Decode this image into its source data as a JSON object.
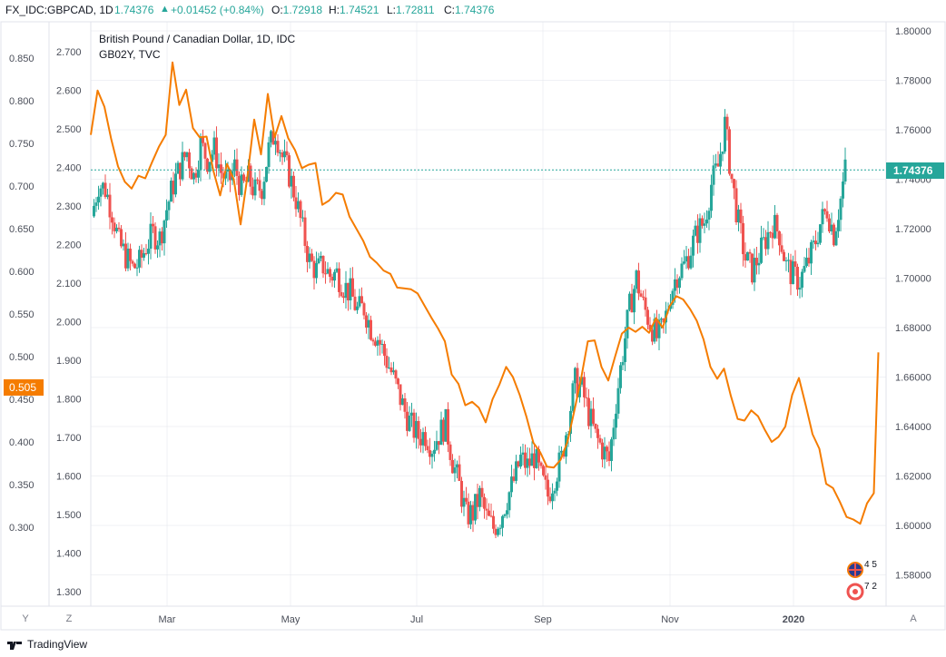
{
  "header": {
    "symbol": "FX_IDC:GBPCAD, 1D",
    "last": "1.74376",
    "up_arrow": "▲",
    "change": "+0.01452 (+0.84%)",
    "o_label": "O:",
    "o_value": "1.72918",
    "h_label": "H:",
    "h_value": "1.74521",
    "l_label": "L:",
    "l_value": "1.72811",
    "c_label": "C:",
    "c_value": "1.74376"
  },
  "legend": {
    "main": "British Pound / Canadian Dollar, 1D, IDC",
    "secondary": "GB02Y, TVC"
  },
  "axis_buttons": {
    "left_y": "Y",
    "left_z": "Z",
    "right_a": "A"
  },
  "footer": {
    "brand": "TradingView",
    "logo_icon": "tradingview-logo-icon"
  },
  "colors": {
    "up": "#26a69a",
    "down": "#ef5350",
    "overlay": "#f57c00",
    "price_line": "#26a69a",
    "grid": "#e0e3eb",
    "axis_text": "#4a4e59"
  },
  "chart_data": {
    "type": "candlestick",
    "series": [
      {
        "name": "FX_IDC:GBPCAD",
        "kind": "candlestick",
        "axis": "right"
      },
      {
        "name": "GB02Y",
        "kind": "line",
        "axis": "left-inner"
      }
    ],
    "x_labels": [
      "Mar",
      "May",
      "Jul",
      "Sep",
      "Nov",
      "2020"
    ],
    "right_axis": {
      "ticks": [
        "1.80000",
        "1.78000",
        "1.76000",
        "1.74000",
        "1.72000",
        "1.70000",
        "1.68000",
        "1.66000",
        "1.64000",
        "1.62000",
        "1.60000",
        "1.58000"
      ],
      "current_price": "1.74376",
      "ylim": [
        1.5712,
        1.8052
      ]
    },
    "left_inner_axis": {
      "ticks": [
        "2.700",
        "2.600",
        "2.500",
        "2.400",
        "2.300",
        "2.200",
        "2.100",
        "2.000",
        "1.900",
        "1.800",
        "1.700",
        "1.600",
        "1.500",
        "1.400",
        "1.300"
      ]
    },
    "left_outer_axis": {
      "ticks": [
        "0.850",
        "0.800",
        "0.750",
        "0.700",
        "0.650",
        "0.600",
        "0.550",
        "0.500",
        "0.450",
        "0.400",
        "0.350",
        "0.300"
      ],
      "current_value": "0.505",
      "ylim": [
        0.2704,
        0.8944
      ]
    },
    "badges": [
      {
        "icon": "uk-flag-icon",
        "text": "4 5"
      },
      {
        "icon": "canada-flag-icon",
        "text": "7 2"
      }
    ],
    "gbpcad_path": [
      [
        0,
        1.725
      ],
      [
        3,
        1.738
      ],
      [
        6,
        1.736
      ],
      [
        9,
        1.727
      ],
      [
        12,
        1.714
      ],
      [
        15,
        1.709
      ],
      [
        18,
        1.704
      ],
      [
        21,
        1.706
      ],
      [
        24,
        1.713
      ],
      [
        27,
        1.718
      ],
      [
        30,
        1.716
      ],
      [
        33,
        1.728
      ],
      [
        36,
        1.738
      ],
      [
        39,
        1.745
      ],
      [
        42,
        1.751
      ],
      [
        45,
        1.741
      ],
      [
        48,
        1.754
      ],
      [
        51,
        1.748
      ],
      [
        54,
        1.752
      ],
      [
        57,
        1.743
      ],
      [
        60,
        1.738
      ],
      [
        63,
        1.745
      ],
      [
        66,
        1.736
      ],
      [
        69,
        1.74
      ],
      [
        72,
        1.735
      ],
      [
        75,
        1.737
      ],
      [
        78,
        1.752
      ],
      [
        81,
        1.76
      ],
      [
        84,
        1.749
      ],
      [
        87,
        1.742
      ],
      [
        90,
        1.732
      ],
      [
        93,
        1.719
      ],
      [
        96,
        1.707
      ],
      [
        99,
        1.703
      ],
      [
        102,
        1.705
      ],
      [
        105,
        1.701
      ],
      [
        108,
        1.702
      ],
      [
        111,
        1.697
      ],
      [
        114,
        1.694
      ],
      [
        117,
        1.687
      ],
      [
        120,
        1.688
      ],
      [
        123,
        1.68
      ],
      [
        126,
        1.676
      ],
      [
        129,
        1.669
      ],
      [
        132,
        1.662
      ],
      [
        135,
        1.654
      ],
      [
        138,
        1.646
      ],
      [
        141,
        1.64
      ],
      [
        144,
        1.636
      ],
      [
        147,
        1.637
      ],
      [
        150,
        1.632
      ],
      [
        153,
        1.637
      ],
      [
        156,
        1.641
      ],
      [
        159,
        1.626
      ],
      [
        162,
        1.616
      ],
      [
        165,
        1.604
      ],
      [
        168,
        1.605
      ],
      [
        171,
        1.612
      ],
      [
        174,
        1.603
      ],
      [
        177,
        1.599
      ],
      [
        180,
        1.603
      ],
      [
        183,
        1.611
      ],
      [
        186,
        1.618
      ],
      [
        189,
        1.627
      ],
      [
        192,
        1.624
      ],
      [
        195,
        1.628
      ],
      [
        198,
        1.619
      ],
      [
        201,
        1.612
      ],
      [
        204,
        1.62
      ],
      [
        207,
        1.627
      ],
      [
        210,
        1.643
      ],
      [
        213,
        1.658
      ],
      [
        216,
        1.655
      ],
      [
        219,
        1.645
      ],
      [
        222,
        1.636
      ],
      [
        225,
        1.631
      ],
      [
        228,
        1.626
      ],
      [
        231,
        1.65
      ],
      [
        234,
        1.67
      ],
      [
        237,
        1.688
      ],
      [
        240,
        1.7
      ],
      [
        243,
        1.689
      ],
      [
        246,
        1.682
      ],
      [
        249,
        1.676
      ],
      [
        252,
        1.68
      ],
      [
        255,
        1.694
      ],
      [
        258,
        1.702
      ],
      [
        261,
        1.705
      ],
      [
        264,
        1.712
      ],
      [
        267,
        1.719
      ],
      [
        270,
        1.723
      ],
      [
        273,
        1.738
      ],
      [
        276,
        1.745
      ],
      [
        279,
        1.762
      ],
      [
        282,
        1.74
      ],
      [
        285,
        1.722
      ],
      [
        288,
        1.708
      ],
      [
        291,
        1.703
      ],
      [
        294,
        1.709
      ],
      [
        297,
        1.716
      ],
      [
        300,
        1.722
      ],
      [
        303,
        1.718
      ],
      [
        306,
        1.705
      ],
      [
        309,
        1.701
      ],
      [
        312,
        1.699
      ],
      [
        315,
        1.705
      ],
      [
        318,
        1.712
      ],
      [
        321,
        1.722
      ],
      [
        324,
        1.728
      ],
      [
        327,
        1.718
      ],
      [
        330,
        1.732
      ],
      [
        332,
        1.744
      ]
    ],
    "gb02y_line": [
      [
        0,
        0.76
      ],
      [
        3,
        0.812
      ],
      [
        6,
        0.793
      ],
      [
        9,
        0.755
      ],
      [
        12,
        0.723
      ],
      [
        15,
        0.705
      ],
      [
        18,
        0.697
      ],
      [
        21,
        0.712
      ],
      [
        24,
        0.709
      ],
      [
        27,
        0.728
      ],
      [
        30,
        0.746
      ],
      [
        33,
        0.76
      ],
      [
        36,
        0.845
      ],
      [
        39,
        0.795
      ],
      [
        42,
        0.813
      ],
      [
        45,
        0.768
      ],
      [
        48,
        0.757
      ],
      [
        51,
        0.758
      ],
      [
        54,
        0.718
      ],
      [
        57,
        0.689
      ],
      [
        60,
        0.726
      ],
      [
        63,
        0.708
      ],
      [
        66,
        0.655
      ],
      [
        69,
        0.711
      ],
      [
        72,
        0.778
      ],
      [
        75,
        0.737
      ],
      [
        78,
        0.808
      ],
      [
        81,
        0.757
      ],
      [
        84,
        0.782
      ],
      [
        87,
        0.756
      ],
      [
        90,
        0.742
      ],
      [
        93,
        0.721
      ],
      [
        96,
        0.725
      ],
      [
        99,
        0.727
      ],
      [
        102,
        0.678
      ],
      [
        105,
        0.683
      ],
      [
        108,
        0.692
      ],
      [
        111,
        0.69
      ],
      [
        114,
        0.664
      ],
      [
        117,
        0.65
      ],
      [
        120,
        0.636
      ],
      [
        123,
        0.617
      ],
      [
        126,
        0.61
      ],
      [
        129,
        0.601
      ],
      [
        132,
        0.597
      ],
      [
        135,
        0.581
      ],
      [
        138,
        0.58
      ],
      [
        141,
        0.579
      ],
      [
        144,
        0.574
      ],
      [
        147,
        0.56
      ],
      [
        150,
        0.546
      ],
      [
        153,
        0.533
      ],
      [
        156,
        0.518
      ],
      [
        159,
        0.479
      ],
      [
        162,
        0.468
      ],
      [
        165,
        0.443
      ],
      [
        168,
        0.447
      ],
      [
        171,
        0.44
      ],
      [
        174,
        0.423
      ],
      [
        177,
        0.45
      ],
      [
        180,
        0.467
      ],
      [
        183,
        0.488
      ],
      [
        186,
        0.476
      ],
      [
        189,
        0.455
      ],
      [
        192,
        0.429
      ],
      [
        195,
        0.399
      ],
      [
        198,
        0.388
      ],
      [
        201,
        0.371
      ],
      [
        204,
        0.37
      ],
      [
        207,
        0.379
      ],
      [
        210,
        0.4
      ],
      [
        213,
        0.436
      ],
      [
        216,
        0.474
      ],
      [
        219,
        0.518
      ],
      [
        222,
        0.519
      ],
      [
        225,
        0.488
      ],
      [
        228,
        0.472
      ],
      [
        231,
        0.5
      ],
      [
        234,
        0.527
      ],
      [
        237,
        0.534
      ],
      [
        240,
        0.529
      ],
      [
        243,
        0.535
      ],
      [
        246,
        0.528
      ],
      [
        249,
        0.545
      ],
      [
        252,
        0.534
      ],
      [
        255,
        0.559
      ],
      [
        258,
        0.571
      ],
      [
        261,
        0.567
      ],
      [
        264,
        0.556
      ],
      [
        267,
        0.542
      ],
      [
        270,
        0.52
      ],
      [
        273,
        0.488
      ],
      [
        276,
        0.474
      ],
      [
        279,
        0.486
      ],
      [
        282,
        0.454
      ],
      [
        285,
        0.427
      ],
      [
        288,
        0.425
      ],
      [
        291,
        0.437
      ],
      [
        294,
        0.43
      ],
      [
        297,
        0.414
      ],
      [
        300,
        0.4
      ],
      [
        303,
        0.406
      ],
      [
        306,
        0.418
      ],
      [
        309,
        0.455
      ],
      [
        312,
        0.475
      ],
      [
        315,
        0.443
      ],
      [
        318,
        0.409
      ],
      [
        321,
        0.392
      ],
      [
        324,
        0.351
      ],
      [
        327,
        0.346
      ],
      [
        330,
        0.33
      ],
      [
        333,
        0.312
      ],
      [
        336,
        0.309
      ],
      [
        339,
        0.304
      ],
      [
        342,
        0.328
      ],
      [
        345,
        0.34
      ],
      [
        347,
        0.505
      ]
    ]
  }
}
